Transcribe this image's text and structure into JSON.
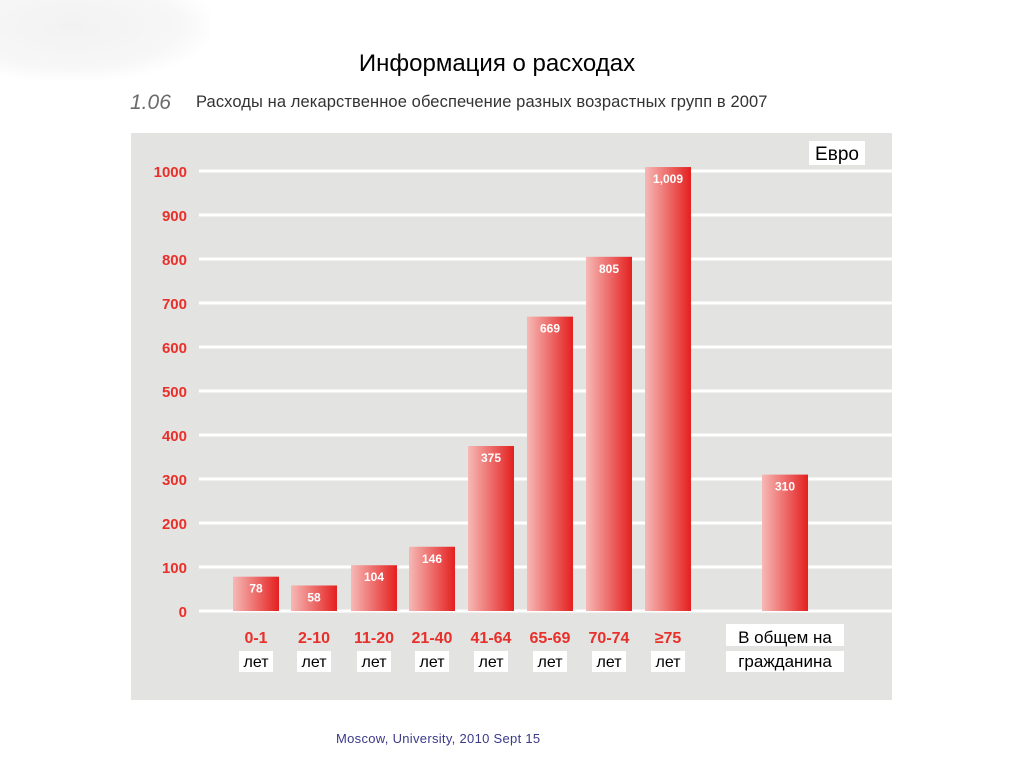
{
  "slide": {
    "title": "Информация о расходах",
    "footer": "Moscow, University, 2010 Sept 15"
  },
  "figure": {
    "number": "1.06",
    "caption": "Расходы на лекарственное обеспечение разных возрастных групп в 2007"
  },
  "colors": {
    "panel": "#e3e3e1",
    "bar_light": "#f6b9b6",
    "bar_dark": "#e4201f",
    "tick_label": "#e8302b"
  },
  "chart_data": {
    "type": "bar",
    "unit_label": "Евро",
    "categories": [
      {
        "range": "0-1",
        "unit": "лет"
      },
      {
        "range": "2-10",
        "unit": "лет"
      },
      {
        "range": "11-20",
        "unit": "лет"
      },
      {
        "range": "21-40",
        "unit": "лет"
      },
      {
        "range": "41-64",
        "unit": "лет"
      },
      {
        "range": "65-69",
        "unit": "лет"
      },
      {
        "range": "70-74",
        "unit": "лет"
      },
      {
        "range": "≥75",
        "unit": "лет"
      },
      {
        "range": "В общем на",
        "unit": "гражданина"
      }
    ],
    "values": [
      78,
      58,
      104,
      146,
      375,
      669,
      805,
      1009,
      310
    ],
    "value_labels": [
      "78",
      "58",
      "104",
      "146",
      "375",
      "669",
      "805",
      "1,009",
      "310"
    ],
    "yticks": [
      0,
      100,
      200,
      300,
      400,
      500,
      600,
      700,
      800,
      900,
      1000
    ],
    "ylim": [
      0,
      1000
    ],
    "grid": true,
    "legend": "none",
    "xlabel": "",
    "ylabel": ""
  }
}
